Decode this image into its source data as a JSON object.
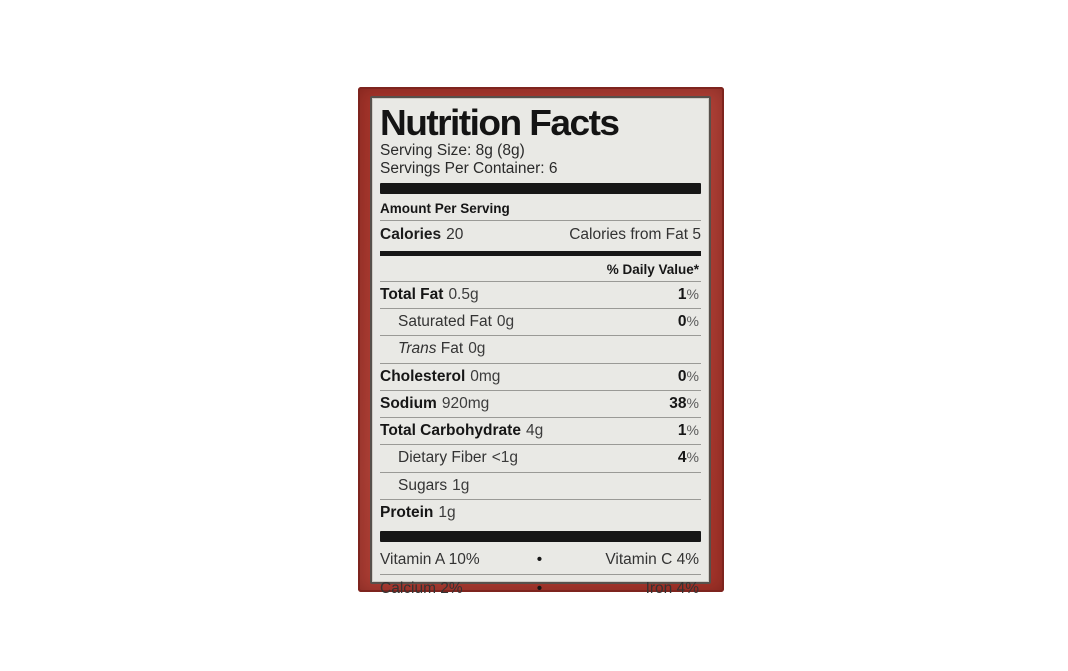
{
  "package": {
    "background_color": "#a83428"
  },
  "label": {
    "background_color": "#e9e9e5",
    "title": "Nutrition Facts",
    "serving_size": "Serving Size: 8g (8g)",
    "servings_per_container": "Servings Per Container: 6",
    "amount_per_serving": "Amount Per Serving",
    "calories": {
      "word": "Calories",
      "value": "20",
      "from_fat": "Calories from Fat 5"
    },
    "daily_value_header": "% Daily Value*",
    "rows": [
      {
        "label": "Total Fat",
        "amount": "0.5g",
        "pct": "1",
        "pct_sign": "%"
      },
      {
        "label": "Saturated Fat",
        "amount": "0g",
        "pct": "0",
        "pct_sign": "%"
      },
      {
        "label": "Trans",
        "label2": " Fat",
        "amount": "0g",
        "pct": "",
        "pct_sign": ""
      },
      {
        "label": "Cholesterol",
        "amount": "0mg",
        "pct": "0",
        "pct_sign": "%"
      },
      {
        "label": "Sodium",
        "amount": "920mg",
        "pct": "38",
        "pct_sign": "%"
      },
      {
        "label": "Total Carbohydrate",
        "amount": "4g",
        "pct": "1",
        "pct_sign": "%"
      },
      {
        "label": "Dietary Fiber",
        "amount": "<1g",
        "pct": "4",
        "pct_sign": "%"
      },
      {
        "label": "Sugars",
        "amount": "1g",
        "pct": "",
        "pct_sign": ""
      },
      {
        "label": "Protein",
        "amount": "1g",
        "pct": "",
        "pct_sign": ""
      }
    ],
    "vitamins": [
      {
        "left": "Vitamin A 10%",
        "sep": "•",
        "right": "Vitamin C 4%"
      },
      {
        "left": "Calcium 2%",
        "sep": "•",
        "right": "Iron 4%"
      }
    ]
  }
}
